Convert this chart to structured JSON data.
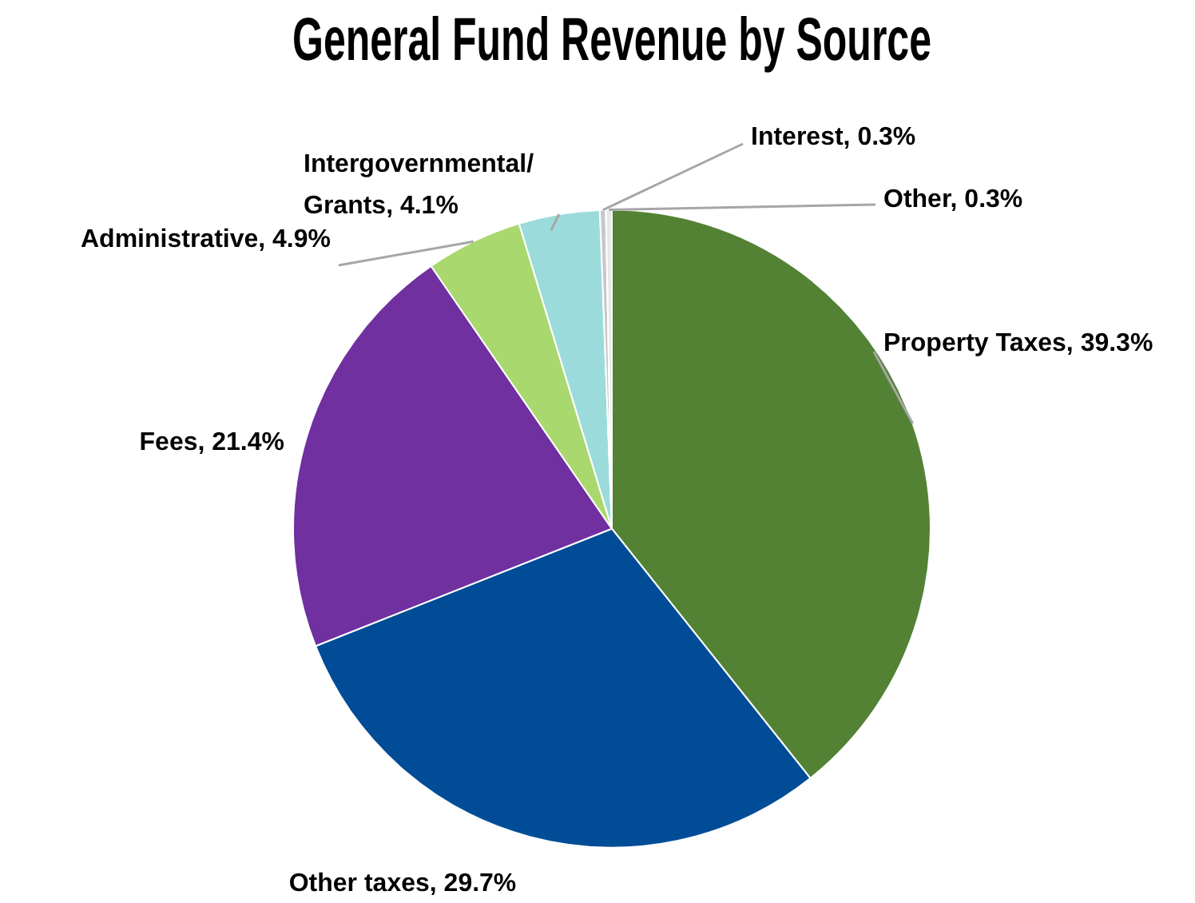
{
  "chart_data": {
    "type": "pie",
    "title": "General Fund Revenue by Source",
    "categories": [
      "Property Taxes",
      "Other taxes",
      "Fees",
      "Administrative",
      "Intergovernmental/ Grants",
      "Interest",
      "Other"
    ],
    "value_labels": [
      "39.3%",
      "29.7%",
      "21.4%",
      "4.9%",
      "4.1%",
      "0.3%",
      "0.3%"
    ],
    "values": [
      39.3,
      29.7,
      21.4,
      4.9,
      4.1,
      0.3,
      0.3
    ],
    "colors": [
      "#548235",
      "#004c97",
      "#7030a0",
      "#a9d86e",
      "#9bdbdb",
      "#c8c8c8",
      "#e8e8e8"
    ],
    "legend": false
  }
}
